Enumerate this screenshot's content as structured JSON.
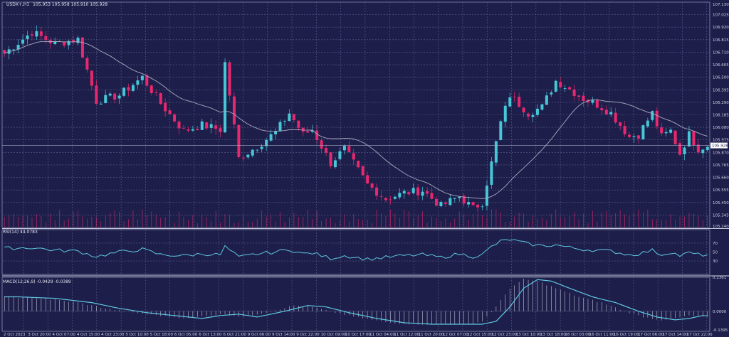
{
  "colors": {
    "background": "#1e1e4a",
    "grid": "#5a5f8c",
    "bull": "#46c6d6",
    "bear": "#e8286e",
    "ma": "#a9a9c0",
    "indicator": "#5ec8e0",
    "text": "#d0d4e6",
    "price_tag": "#ffffff"
  },
  "chart_data": {
    "type": "candlestick",
    "main": {
      "header": {
        "symbol": "USDX+,H1",
        "values": "105.953 105.958 105.910 105.928"
      },
      "ylim": [
        105.24,
        107.13
      ],
      "y_ticks": [
        "107.130",
        "107.025",
        "106.920",
        "106.815",
        "106.710",
        "106.605",
        "106.500",
        "106.395",
        "106.290",
        "106.185",
        "106.080",
        "105.975",
        "105.870",
        "105.765",
        "105.660",
        "105.555",
        "105.450",
        "105.345",
        "105.240"
      ],
      "current_price": "105.928",
      "x_ticks": [
        "2 Oct 2023",
        "3 Oct 20:00",
        "4 Oct 07:00",
        "4 Oct 15:00",
        "4 Oct 23:00",
        "5 Oct 10:00",
        "5 Oct 18:00",
        "6 Oct 05:00",
        "6 Oct 13:00",
        "6 Oct 21:00",
        "9 Oct 06:00",
        "9 Oct 14:00",
        "9 Oct 22:00",
        "10 Oct 09:00",
        "10 Oct 17:00",
        "11 Oct 04:00",
        "11 Oct 12:00",
        "11 Oct 20:00",
        "12 Oct 07:00",
        "12 Oct 15:00",
        "12 Oct 23:00",
        "13 Oct 10:00",
        "13 Oct 18:00",
        "16 Oct 03:00",
        "16 Oct 11:00",
        "16 Oct 19:00",
        "17 Oct 06:00",
        "17 Oct 14:00",
        "17 Oct 22:00"
      ],
      "close_anchors": [
        [
          0,
          106.7
        ],
        [
          6,
          106.88
        ],
        [
          11,
          106.78
        ],
        [
          16,
          106.82
        ],
        [
          20,
          106.3
        ],
        [
          25,
          106.35
        ],
        [
          30,
          106.5
        ],
        [
          34,
          106.28
        ],
        [
          39,
          106.05
        ],
        [
          43,
          106.1
        ],
        [
          47,
          106.06
        ],
        [
          48,
          106.62
        ],
        [
          51,
          105.82
        ],
        [
          55,
          105.92
        ],
        [
          59,
          106.04
        ],
        [
          62,
          106.2
        ],
        [
          65,
          106.02
        ],
        [
          67,
          106.06
        ],
        [
          71,
          105.78
        ],
        [
          74,
          105.9
        ],
        [
          79,
          105.6
        ],
        [
          83,
          105.48
        ],
        [
          87,
          105.53
        ],
        [
          91,
          105.55
        ],
        [
          95,
          105.42
        ],
        [
          99,
          105.5
        ],
        [
          102,
          105.4
        ],
        [
          104,
          105.45
        ],
        [
          106,
          105.78
        ],
        [
          108,
          106.12
        ],
        [
          110,
          106.35
        ],
        [
          114,
          106.2
        ],
        [
          117,
          106.25
        ],
        [
          120,
          106.47
        ],
        [
          123,
          106.4
        ],
        [
          126,
          106.32
        ],
        [
          129,
          106.27
        ],
        [
          132,
          106.2
        ],
        [
          136,
          106.0
        ],
        [
          138,
          106.02
        ],
        [
          141,
          106.2
        ],
        [
          143,
          106.0
        ],
        [
          145,
          106.05
        ],
        [
          147,
          105.86
        ],
        [
          149,
          106.02
        ],
        [
          151,
          105.9
        ],
        [
          153,
          105.93
        ]
      ],
      "moving_average": {
        "period": 20
      }
    },
    "rsi": {
      "label": "RSI(14) 44.0783",
      "levels": [
        70,
        30
      ],
      "ylim": [
        0,
        100
      ],
      "y_ticks": [
        "70",
        "50",
        "30"
      ],
      "anchors": [
        [
          0,
          58
        ],
        [
          6,
          60
        ],
        [
          11,
          54
        ],
        [
          16,
          52
        ],
        [
          20,
          40
        ],
        [
          25,
          50
        ],
        [
          30,
          56
        ],
        [
          34,
          44
        ],
        [
          39,
          42
        ],
        [
          43,
          46
        ],
        [
          47,
          44
        ],
        [
          48,
          62
        ],
        [
          51,
          38
        ],
        [
          55,
          46
        ],
        [
          59,
          50
        ],
        [
          62,
          56
        ],
        [
          65,
          46
        ],
        [
          67,
          48
        ],
        [
          71,
          36
        ],
        [
          74,
          42
        ],
        [
          79,
          34
        ],
        [
          83,
          38
        ],
        [
          87,
          42
        ],
        [
          91,
          44
        ],
        [
          95,
          38
        ],
        [
          99,
          46
        ],
        [
          102,
          40
        ],
        [
          104,
          44
        ],
        [
          106,
          62
        ],
        [
          108,
          74
        ],
        [
          110,
          78
        ],
        [
          114,
          68
        ],
        [
          117,
          64
        ],
        [
          120,
          66
        ],
        [
          123,
          60
        ],
        [
          126,
          56
        ],
        [
          129,
          54
        ],
        [
          132,
          52
        ],
        [
          136,
          44
        ],
        [
          138,
          46
        ],
        [
          141,
          54
        ],
        [
          143,
          44
        ],
        [
          145,
          50
        ],
        [
          147,
          42
        ],
        [
          149,
          48
        ],
        [
          151,
          44
        ],
        [
          153,
          44
        ]
      ]
    },
    "macd": {
      "label": "MACD(12,26,9) -0.0429 -0.0389",
      "ylim": [
        -0.1395,
        0.2361
      ],
      "y_ticks": [
        "0.2361",
        "0.0000",
        "-0.1395"
      ],
      "anchors": [
        [
          0,
          0.1
        ],
        [
          8,
          0.09
        ],
        [
          16,
          0.06
        ],
        [
          22,
          0.02
        ],
        [
          28,
          -0.01
        ],
        [
          34,
          -0.03
        ],
        [
          40,
          -0.05
        ],
        [
          44,
          -0.03
        ],
        [
          48,
          -0.02
        ],
        [
          52,
          -0.04
        ],
        [
          58,
          0.0
        ],
        [
          63,
          0.04
        ],
        [
          67,
          0.03
        ],
        [
          72,
          -0.01
        ],
        [
          78,
          -0.05
        ],
        [
          84,
          -0.08
        ],
        [
          90,
          -0.09
        ],
        [
          96,
          -0.09
        ],
        [
          101,
          -0.09
        ],
        [
          104,
          -0.07
        ],
        [
          107,
          0.03
        ],
        [
          110,
          0.16
        ],
        [
          113,
          0.22
        ],
        [
          116,
          0.21
        ],
        [
          120,
          0.16
        ],
        [
          125,
          0.1
        ],
        [
          130,
          0.06
        ],
        [
          135,
          0.0
        ],
        [
          139,
          -0.04
        ],
        [
          143,
          -0.06
        ],
        [
          146,
          -0.05
        ],
        [
          149,
          -0.03
        ],
        [
          153,
          -0.04
        ]
      ]
    }
  }
}
